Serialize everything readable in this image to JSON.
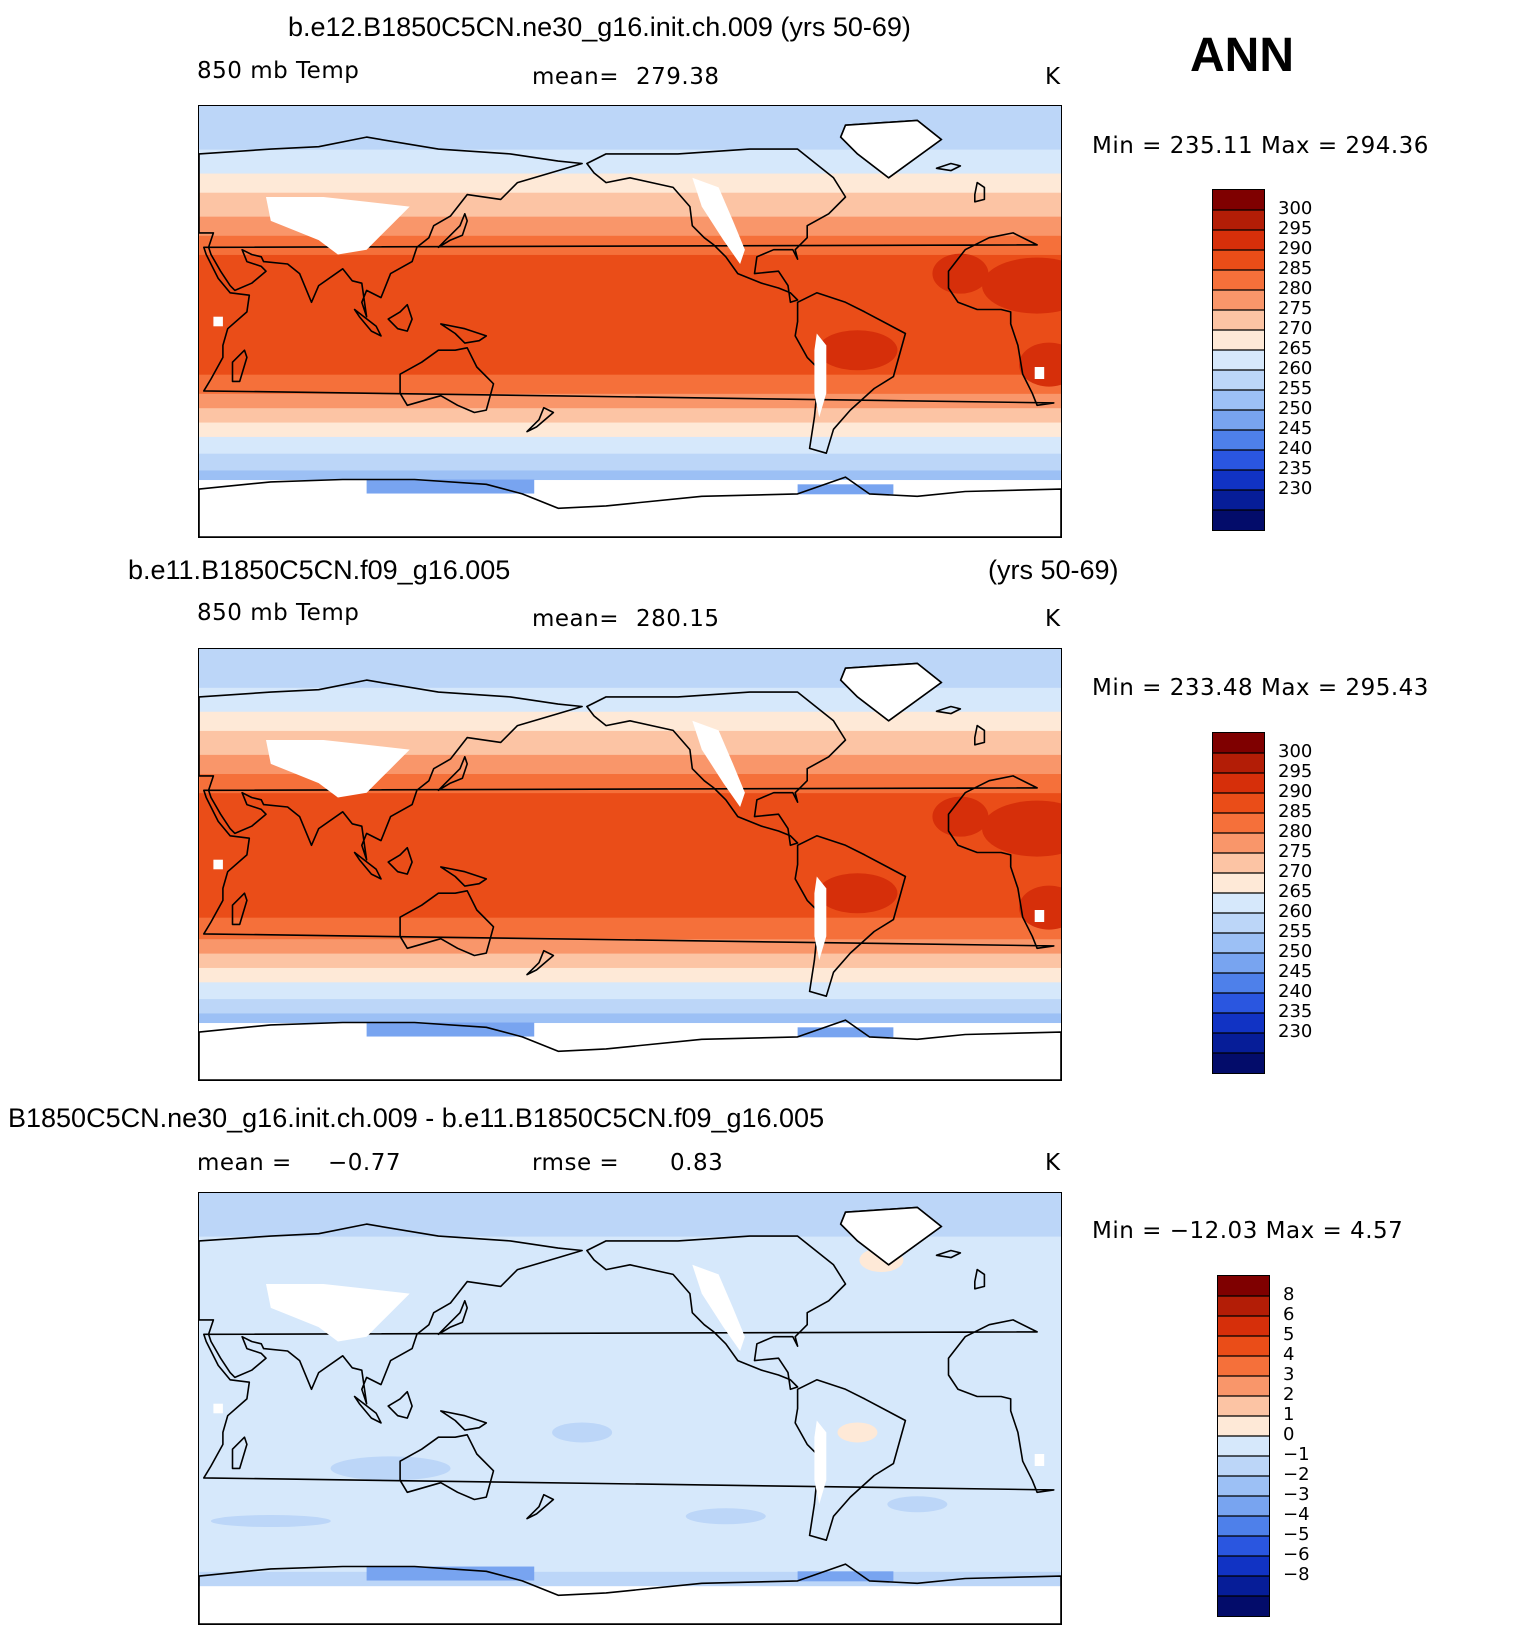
{
  "season_label": "ANN",
  "panels": [
    {
      "title_left": "b.e12.B1850C5CN.ne30_g16.init.ch.009 (yrs 50-69)",
      "title_right": "",
      "var_label": "850 mb Temp",
      "stat_label": "mean=",
      "stat_value": "279.38",
      "stat2_label": "",
      "stat2_value": "",
      "units": "K",
      "minmax": "Min  =  235.11  Max  =  294.36",
      "colorbar": {
        "levels": [
          "300",
          "295",
          "290",
          "285",
          "280",
          "275",
          "270",
          "265",
          "260",
          "255",
          "250",
          "245",
          "240",
          "235",
          "230"
        ],
        "colors": [
          "#7f0000",
          "#b31d06",
          "#d62f0a",
          "#ea4d18",
          "#f5703a",
          "#f9966a",
          "#fcc4a4",
          "#fee9d7",
          "#d6e8fb",
          "#bcd6f8",
          "#9cc0f5",
          "#78a4f0",
          "#4e80ea",
          "#2a56e0",
          "#1133c4",
          "#061d98",
          "#030c6a"
        ]
      }
    },
    {
      "title_left": "b.e11.B1850C5CN.f09_g16.005",
      "title_right": "(yrs 50-69)",
      "var_label": "850 mb Temp",
      "stat_label": "mean=",
      "stat_value": "280.15",
      "stat2_label": "",
      "stat2_value": "",
      "units": "K",
      "minmax": "Min  =  233.48  Max  =  295.43",
      "colorbar": {
        "levels": [
          "300",
          "295",
          "290",
          "285",
          "280",
          "275",
          "270",
          "265",
          "260",
          "255",
          "250",
          "245",
          "240",
          "235",
          "230"
        ],
        "colors": [
          "#7f0000",
          "#b31d06",
          "#d62f0a",
          "#ea4d18",
          "#f5703a",
          "#f9966a",
          "#fcc4a4",
          "#fee9d7",
          "#d6e8fb",
          "#bcd6f8",
          "#9cc0f5",
          "#78a4f0",
          "#4e80ea",
          "#2a56e0",
          "#1133c4",
          "#061d98",
          "#030c6a"
        ]
      }
    },
    {
      "title_left": "B1850C5CN.ne30_g16.init.ch.009 - b.e11.B1850C5CN.f09_g16.005",
      "title_right": "",
      "var_label": "mean =",
      "stat_label": "",
      "stat_value": "−0.77",
      "stat2_label": "rmse =",
      "stat2_value": "0.83",
      "units": "K",
      "minmax": "Min  =  −12.03  Max  =     4.57",
      "colorbar": {
        "levels": [
          "8",
          "6",
          "5",
          "4",
          "3",
          "2",
          "1",
          "0",
          "−1",
          "−2",
          "−3",
          "−4",
          "−5",
          "−6",
          "−8"
        ],
        "colors": [
          "#7f0000",
          "#b31d06",
          "#d62f0a",
          "#ea4d18",
          "#f5703a",
          "#f9966a",
          "#fcc4a4",
          "#fee9d7",
          "#d6e8fb",
          "#bcd6f8",
          "#9cc0f5",
          "#78a4f0",
          "#4e80ea",
          "#2a56e0",
          "#1133c4",
          "#061d98",
          "#030c6a"
        ]
      }
    }
  ]
}
